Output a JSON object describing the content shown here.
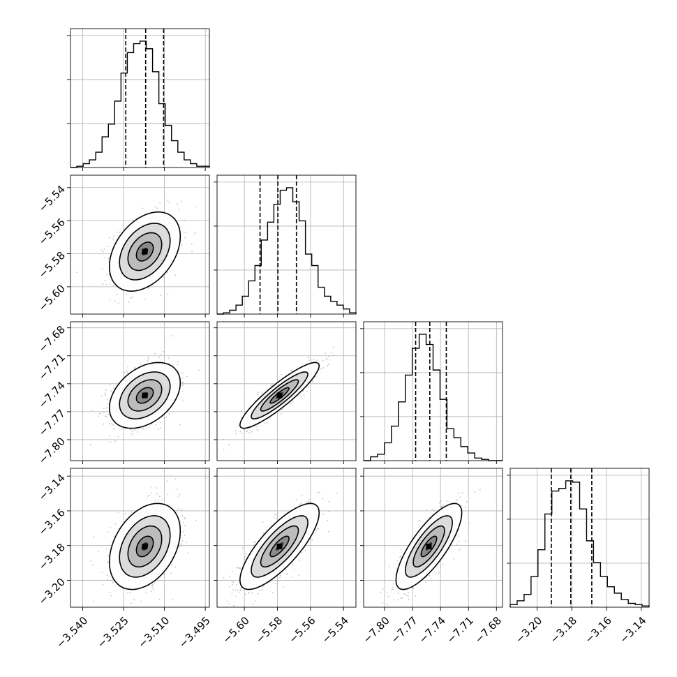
{
  "chart_data": {
    "type": "corner",
    "grid": true,
    "n_params": 4,
    "params": [
      {
        "name": "",
        "range": [
          -3.5445,
          -3.4935
        ],
        "ticks": [
          "−3.540",
          "−3.525",
          "−3.510",
          "−3.495"
        ],
        "tick_values": [
          -3.54,
          -3.525,
          -3.51,
          -3.495
        ],
        "quantiles": [
          -3.5242,
          -3.5169,
          -3.5103
        ],
        "hist_counts": [
          0,
          1,
          3,
          6,
          12,
          24,
          34,
          52,
          74,
          90,
          97,
          99,
          93,
          75,
          50,
          33,
          21,
          12,
          6,
          3,
          1,
          1
        ]
      },
      {
        "name": "",
        "range": [
          -5.6165,
          -5.5325
        ],
        "ticks": [
          "−5.60",
          "−5.58",
          "−5.56",
          "−5.54"
        ],
        "tick_values": [
          -5.6,
          -5.58,
          -5.56,
          -5.54
        ],
        "quantiles": [
          -5.5905,
          -5.5797,
          -5.5685
        ],
        "hist_counts": [
          0,
          1,
          3,
          7,
          14,
          26,
          38,
          58,
          72,
          86,
          97,
          99,
          88,
          73,
          47,
          38,
          21,
          14,
          10,
          7,
          4,
          1
        ]
      },
      {
        "name": "",
        "range": [
          -7.8225,
          -7.6735
        ],
        "ticks": [
          "−7.80",
          "−7.77",
          "−7.74",
          "−7.71",
          "−7.68"
        ],
        "tick_values": [
          -7.8,
          -7.77,
          -7.74,
          -7.71,
          -7.68
        ],
        "quantiles": [
          -7.7667,
          -7.7515,
          -7.7338
        ],
        "hist_counts": [
          0,
          3,
          5,
          14,
          27,
          46,
          67,
          88,
          99,
          91,
          71,
          48,
          25,
          18,
          11,
          6,
          2,
          1,
          0,
          0
        ]
      },
      {
        "name": "",
        "range": [
          -3.2155,
          -3.1355
        ],
        "ticks": [
          "−3.20",
          "−3.18",
          "−3.16",
          "−3.14"
        ],
        "tick_values": [
          -3.2,
          -3.18,
          -3.16,
          -3.14
        ],
        "quantiles": [
          -3.1918,
          -3.1806,
          -3.1685
        ],
        "hist_counts": [
          2,
          5,
          10,
          24,
          45,
          73,
          91,
          93,
          99,
          98,
          77,
          52,
          35,
          24,
          16,
          11,
          6,
          3,
          2,
          1
        ]
      }
    ],
    "pairs": [
      {
        "row": 1,
        "col": 0,
        "mean": [
          -3.5172,
          -5.5787
        ],
        "sd": [
          0.0062,
          0.0114
        ],
        "corr": 0.38
      },
      {
        "row": 2,
        "col": 0,
        "mean": [
          -3.5172,
          -7.7525
        ],
        "sd": [
          0.0062,
          0.0168
        ],
        "corr": 0.38
      },
      {
        "row": 2,
        "col": 1,
        "mean": [
          -5.5787,
          -7.7525
        ],
        "sd": [
          0.0114,
          0.0168
        ],
        "corr": 0.9
      },
      {
        "row": 3,
        "col": 0,
        "mean": [
          -3.5172,
          -3.1805
        ],
        "sd": [
          0.0062,
          0.0118
        ],
        "corr": 0.36
      },
      {
        "row": 3,
        "col": 1,
        "mean": [
          -5.5787,
          -3.1805
        ],
        "sd": [
          0.0114,
          0.0118
        ],
        "corr": 0.78
      },
      {
        "row": 3,
        "col": 2,
        "mean": [
          -7.7525,
          -3.1805
        ],
        "sd": [
          0.0168,
          0.0118
        ],
        "corr": 0.78
      }
    ]
  }
}
